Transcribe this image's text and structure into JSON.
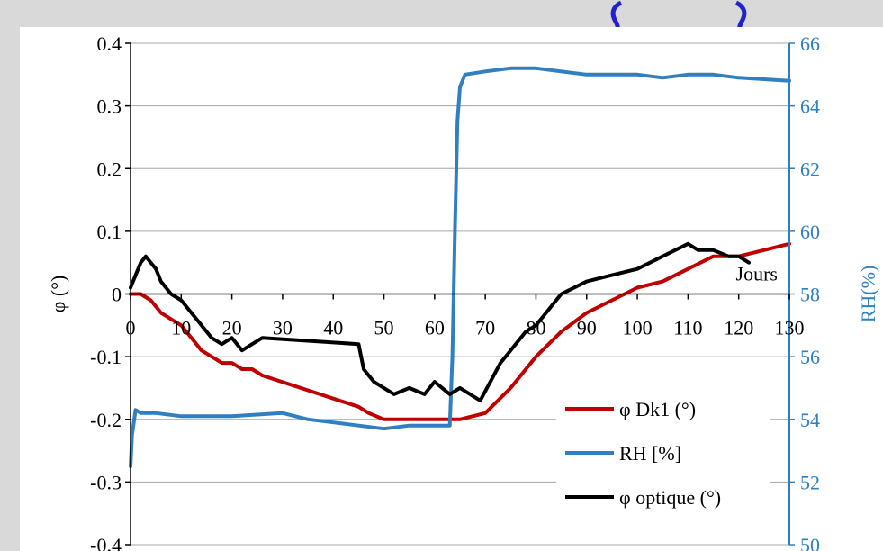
{
  "chart_data": {
    "type": "line",
    "title": "",
    "xlabel": "Jours",
    "ylabel_left": "φ (°)",
    "ylabel_right": "RH(%)",
    "xlim": [
      0,
      130
    ],
    "ylim_left": [
      -0.4,
      0.4
    ],
    "ylim_right": [
      50,
      66
    ],
    "x_ticks": [
      0,
      10,
      20,
      30,
      40,
      50,
      60,
      70,
      80,
      90,
      100,
      110,
      120,
      130
    ],
    "y_ticks_left": [
      "0.4",
      "0.3",
      "0.2",
      "0.1",
      "0",
      "-0.1",
      "-0.2",
      "-0.3",
      "-0.4"
    ],
    "y_ticks_right": [
      "66",
      "64",
      "62",
      "60",
      "58",
      "56",
      "54",
      "52",
      "50"
    ],
    "grid": "horizontal",
    "legend_position": "bottom-right",
    "legend": [
      "φ Dk1 (°)",
      "RH [%]",
      "φ optique (°)"
    ],
    "series": [
      {
        "name": "φ Dk1 (°)",
        "axis": "left",
        "color": "#c00000",
        "x": [
          0,
          2,
          4,
          6,
          8,
          10,
          12,
          14,
          16,
          18,
          20,
          22,
          24,
          26,
          45,
          47,
          50,
          55,
          60,
          65,
          70,
          75,
          80,
          85,
          90,
          95,
          100,
          105,
          110,
          115,
          120,
          125,
          130
        ],
        "y": [
          0.0,
          0.0,
          -0.01,
          -0.03,
          -0.04,
          -0.05,
          -0.07,
          -0.09,
          -0.1,
          -0.11,
          -0.11,
          -0.12,
          -0.12,
          -0.13,
          -0.18,
          -0.19,
          -0.2,
          -0.2,
          -0.2,
          -0.2,
          -0.19,
          -0.15,
          -0.1,
          -0.06,
          -0.03,
          -0.01,
          0.01,
          0.02,
          0.04,
          0.06,
          0.06,
          0.07,
          0.08
        ]
      },
      {
        "name": "RH [%]",
        "axis": "right",
        "color": "#2f7fc1",
        "x": [
          0,
          0.3,
          1,
          2,
          5,
          10,
          20,
          30,
          35,
          40,
          45,
          50,
          55,
          60,
          63,
          63.5,
          64,
          64.5,
          65,
          65.5,
          66,
          70,
          75,
          80,
          90,
          100,
          105,
          110,
          115,
          120,
          130
        ],
        "y": [
          52.5,
          53.5,
          54.3,
          54.2,
          54.2,
          54.1,
          54.1,
          54.2,
          54.0,
          53.9,
          53.8,
          53.7,
          53.8,
          53.8,
          53.8,
          56,
          60,
          63.5,
          64.6,
          64.8,
          65.0,
          65.1,
          65.2,
          65.2,
          65.0,
          65.0,
          64.9,
          65.0,
          65.0,
          64.9,
          64.8
        ]
      },
      {
        "name": "φ optique (°)",
        "axis": "left",
        "color": "#000000",
        "x": [
          0,
          1,
          2,
          3,
          4,
          5,
          6,
          8,
          10,
          12,
          14,
          16,
          18,
          20,
          22,
          24,
          26,
          45,
          46,
          48,
          50,
          52,
          55,
          58,
          60,
          63,
          65,
          67,
          69,
          71,
          73,
          75,
          78,
          80,
          85,
          90,
          95,
          100,
          105,
          110,
          112,
          115,
          118,
          120,
          122
        ],
        "y": [
          0.01,
          0.03,
          0.05,
          0.06,
          0.05,
          0.04,
          0.02,
          0.0,
          -0.01,
          -0.03,
          -0.05,
          -0.07,
          -0.08,
          -0.07,
          -0.09,
          -0.08,
          -0.07,
          -0.08,
          -0.12,
          -0.14,
          -0.15,
          -0.16,
          -0.15,
          -0.16,
          -0.14,
          -0.16,
          -0.15,
          -0.16,
          -0.17,
          -0.14,
          -0.11,
          -0.09,
          -0.06,
          -0.05,
          0.0,
          0.02,
          0.03,
          0.04,
          0.06,
          0.08,
          0.07,
          0.07,
          0.06,
          0.06,
          0.05
        ]
      }
    ]
  }
}
